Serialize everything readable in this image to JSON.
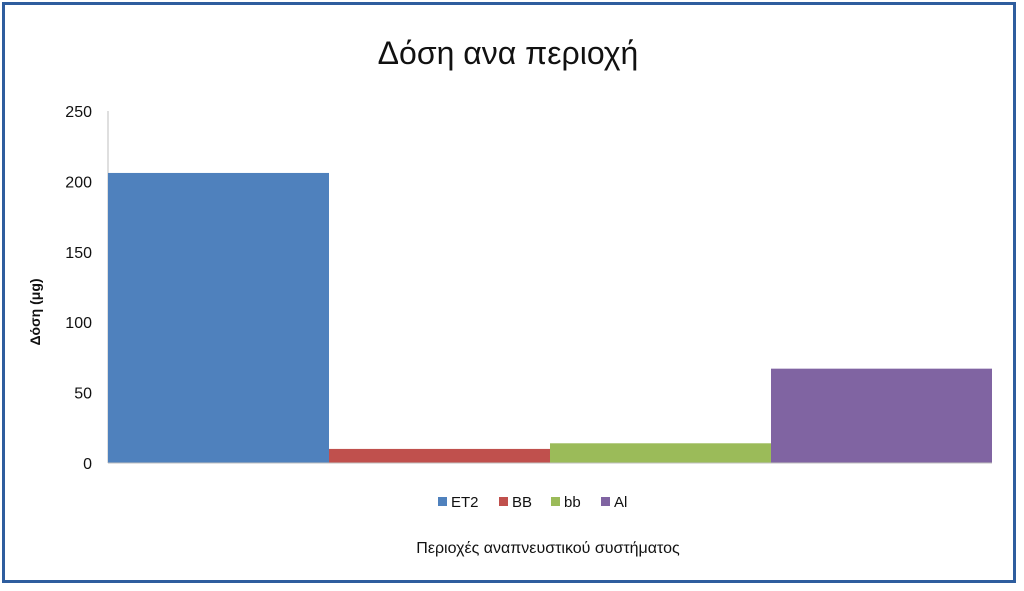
{
  "chart_data": {
    "type": "bar",
    "title": "Δόση ανα περιοχή",
    "xlabel": "Περιοχές αναπνευστικού συστήματος",
    "ylabel": "Δόση (μg)",
    "ylim": [
      0,
      250
    ],
    "yticks": [
      "0",
      "50",
      "100",
      "150",
      "200",
      "250"
    ],
    "grid": false,
    "legend_position": "bottom",
    "series": [
      {
        "name": "ET2",
        "value": 206,
        "color": "#4f81bd"
      },
      {
        "name": "BB",
        "value": 10,
        "color": "#c0504d"
      },
      {
        "name": "bb",
        "value": 14,
        "color": "#9bbb59"
      },
      {
        "name": "Al",
        "value": 67,
        "color": "#8064a2"
      }
    ]
  }
}
